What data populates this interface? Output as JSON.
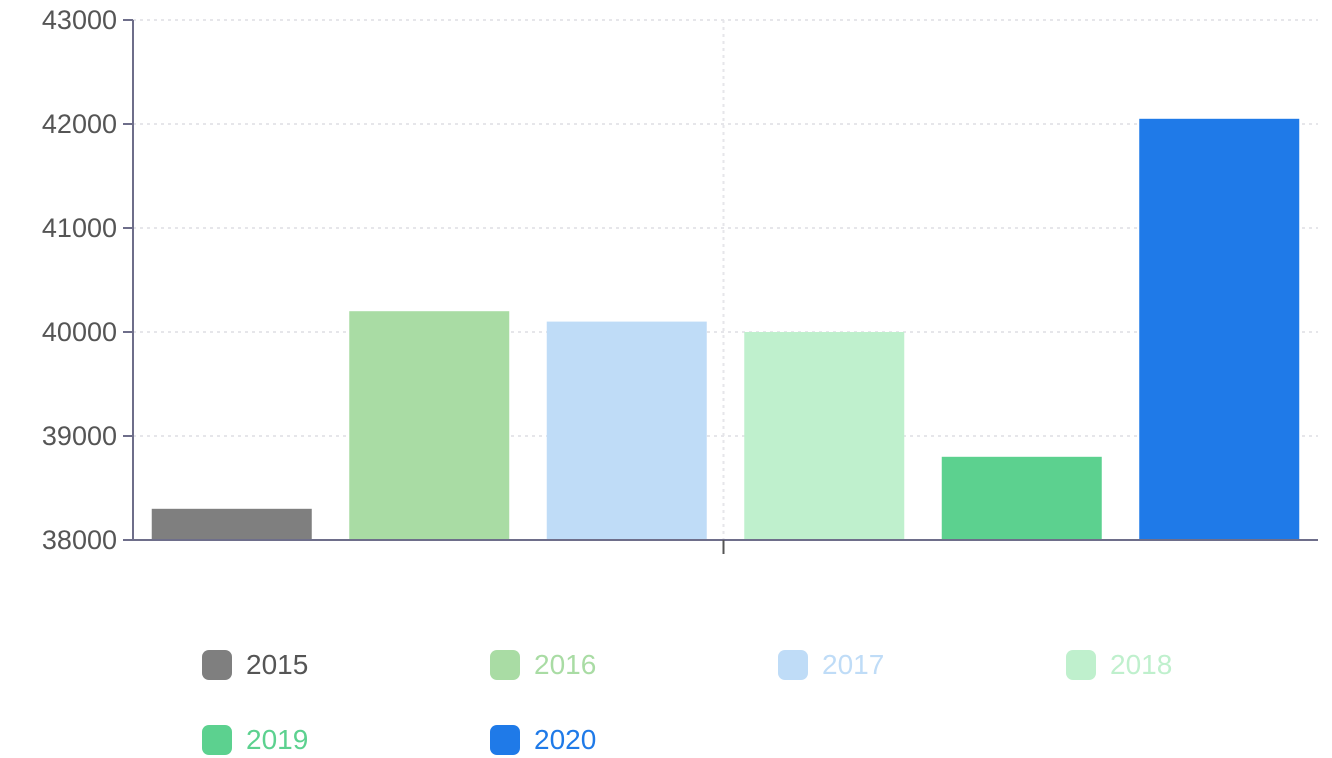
{
  "chart_data": {
    "type": "bar",
    "title": "",
    "xlabel": "",
    "ylabel": "",
    "ylim": [
      38000,
      43000
    ],
    "yticks": [
      38000,
      39000,
      40000,
      41000,
      42000,
      43000
    ],
    "grid": true,
    "legend_position": "bottom",
    "series": [
      {
        "name": "2015",
        "value": 38300,
        "color": "#7f7f7f"
      },
      {
        "name": "2016",
        "value": 40200,
        "color": "#a9dca4"
      },
      {
        "name": "2017",
        "value": 40100,
        "color": "#bfdcf7"
      },
      {
        "name": "2018",
        "value": 40000,
        "color": "#bff0cd"
      },
      {
        "name": "2019",
        "value": 38800,
        "color": "#5cd18f"
      },
      {
        "name": "2020",
        "value": 42050,
        "color": "#1f7ae8"
      }
    ]
  }
}
